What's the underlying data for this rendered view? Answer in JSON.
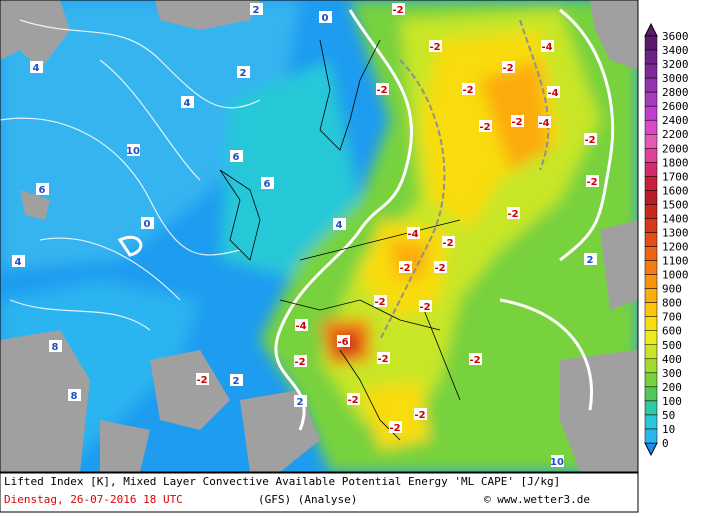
{
  "legend": {
    "levels": [
      {
        "label": "3600",
        "color": "#5a1a6e"
      },
      {
        "label": "3400",
        "color": "#6e2386"
      },
      {
        "label": "3200",
        "color": "#7f2a99"
      },
      {
        "label": "3000",
        "color": "#9433ad"
      },
      {
        "label": "2800",
        "color": "#a83cbf"
      },
      {
        "label": "2600",
        "color": "#c23ccf"
      },
      {
        "label": "2400",
        "color": "#d848c8"
      },
      {
        "label": "2200",
        "color": "#e25ab8"
      },
      {
        "label": "2000",
        "color": "#e0409a"
      },
      {
        "label": "1800",
        "color": "#d42a6e"
      },
      {
        "label": "1700",
        "color": "#c8203c"
      },
      {
        "label": "1600",
        "color": "#b81c28"
      },
      {
        "label": "1500",
        "color": "#c8281e"
      },
      {
        "label": "1400",
        "color": "#d8381a"
      },
      {
        "label": "1300",
        "color": "#e44c18"
      },
      {
        "label": "1200",
        "color": "#ee6414"
      },
      {
        "label": "1100",
        "color": "#f47c10"
      },
      {
        "label": "1000",
        "color": "#f8940c"
      },
      {
        "label": "900",
        "color": "#fcac0c"
      },
      {
        "label": "800",
        "color": "#fcc40c"
      },
      {
        "label": "700",
        "color": "#f8dc10"
      },
      {
        "label": "600",
        "color": "#ecec18"
      },
      {
        "label": "500",
        "color": "#c8e628"
      },
      {
        "label": "400",
        "color": "#a0dc30"
      },
      {
        "label": "300",
        "color": "#78d23c"
      },
      {
        "label": "200",
        "color": "#50c85a"
      },
      {
        "label": "100",
        "color": "#30c8a0"
      },
      {
        "label": "50",
        "color": "#28c8d8"
      },
      {
        "label": "10",
        "color": "#2ab4f0"
      },
      {
        "label": "0",
        "color": "#1e8cf0"
      }
    ]
  },
  "map": {
    "labels": [
      "-2",
      "-2",
      "-2",
      "-4",
      "-2",
      "-4",
      "-2",
      "-2",
      "-2",
      "-4",
      "-2",
      "-2",
      "-2",
      "-2",
      "-2",
      "-2",
      "-4",
      "-6",
      "-2",
      "-2",
      "-2",
      "-2",
      "-2",
      "-2",
      "2",
      "4",
      "4",
      "6",
      "6",
      "8",
      "10",
      "10",
      "0",
      "0",
      "2",
      "2",
      "4",
      "6",
      "8",
      "4",
      "2",
      "2",
      "-2",
      "-2",
      "-2",
      "-4"
    ]
  },
  "caption": {
    "line1": "Lifted Index [K], Mixed Layer Convective Available Potential Energy 'ML CAPE' [J/kg]",
    "date": "Dienstag, 26-07-2016  18 UTC",
    "model": "(GFS)   (Analyse)",
    "source": "© www.wetter3.de"
  }
}
